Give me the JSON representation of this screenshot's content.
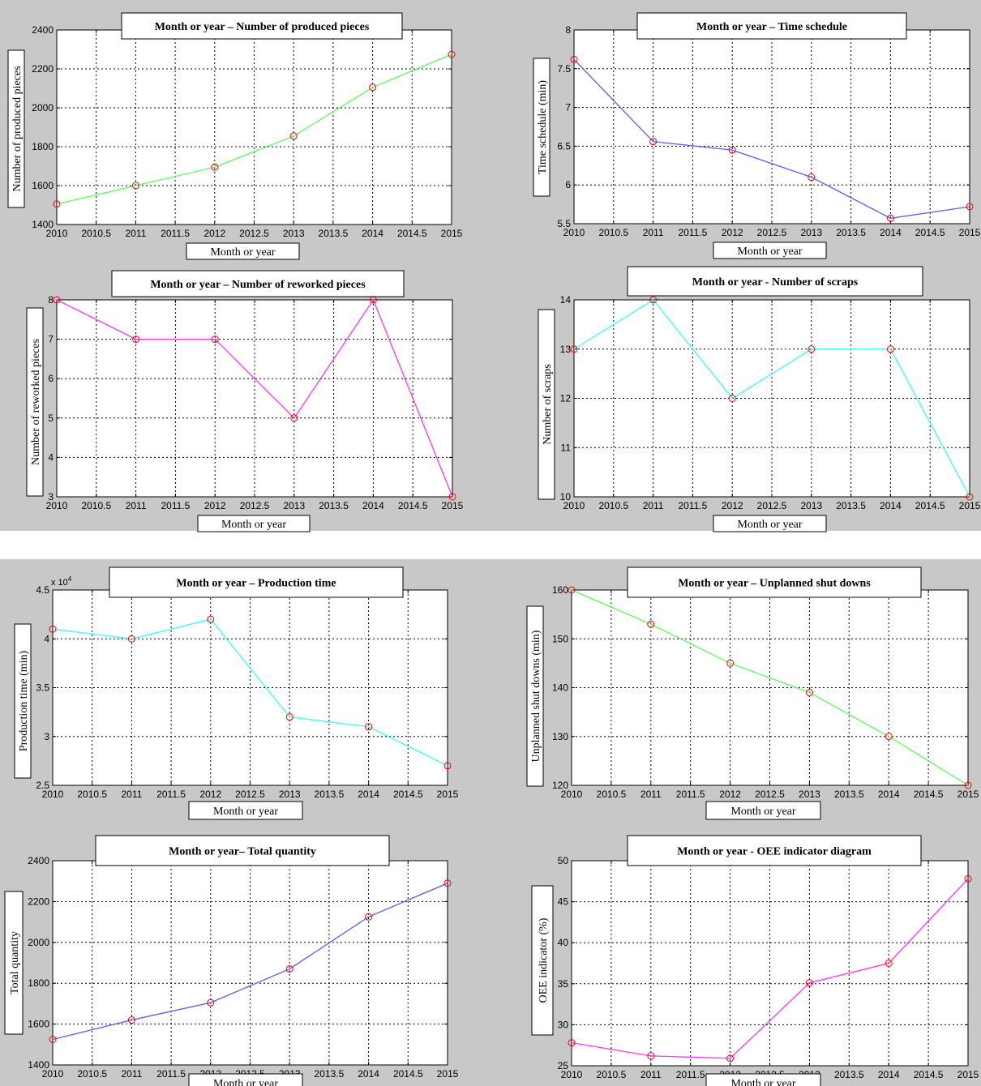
{
  "chart_data": [
    {
      "type": "line",
      "title": "Month or year – Number of produced pieces",
      "xlabel": "Month or year",
      "ylabel": "Number of produced pieces",
      "x": [
        2010,
        2011,
        2012,
        2013,
        2014,
        2015
      ],
      "series": [
        {
          "values": [
            1505,
            1600,
            1695,
            1855,
            2105,
            2275
          ]
        }
      ],
      "xlim": [
        2010,
        2015
      ],
      "ylim": [
        1400,
        2400
      ],
      "xticks": [
        "2010",
        "2010.5",
        "2011",
        "2011.5",
        "2012",
        "2012.5",
        "2013",
        "2013.5",
        "2014",
        "2014.5",
        "2015"
      ],
      "yticks": [
        "1400",
        "1600",
        "1800",
        "2000",
        "2200",
        "2400"
      ],
      "line_color": "#5aff5a",
      "marker_color": "#ff0000",
      "grid": true
    },
    {
      "type": "line",
      "title": "Month or year – Time schedule",
      "xlabel": "Month or year",
      "ylabel": "Time schedule (min)",
      "x": [
        2010,
        2011,
        2012,
        2013,
        2014,
        2015
      ],
      "series": [
        {
          "values": [
            7.62,
            6.56,
            6.45,
            6.1,
            5.57,
            5.72
          ]
        }
      ],
      "xlim": [
        2010,
        2015
      ],
      "ylim": [
        5.5,
        8
      ],
      "xticks": [
        "2010",
        "2010.5",
        "2011",
        "2011.5",
        "2012",
        "2012.5",
        "2013",
        "2013.5",
        "2014",
        "2014.5",
        "2015"
      ],
      "yticks": [
        "5.5",
        "6",
        "6.5",
        "7",
        "7.5",
        "8"
      ],
      "line_color": "#5a5aff",
      "marker_color": "#ff0000",
      "grid": true
    },
    {
      "type": "line",
      "title": "Month or year – Number of reworked pieces",
      "xlabel": "Month or year",
      "ylabel": "Number of reworked pieces",
      "x": [
        2010,
        2011,
        2012,
        2013,
        2014,
        2015
      ],
      "series": [
        {
          "values": [
            8,
            7,
            7,
            5,
            8,
            3
          ]
        }
      ],
      "xlim": [
        2010,
        2015
      ],
      "ylim": [
        3,
        8
      ],
      "xticks": [
        "2010",
        "2010.5",
        "2011",
        "2011.5",
        "2012",
        "2012.5",
        "2013",
        "2013.5",
        "2014",
        "2014.5",
        "2015"
      ],
      "yticks": [
        "3",
        "4",
        "5",
        "6",
        "7",
        "8"
      ],
      "line_color": "#ff33ff",
      "marker_color": "#ff0000",
      "grid": true
    },
    {
      "type": "line",
      "title": "Month or year - Number of scraps",
      "xlabel": "Month or year",
      "ylabel": "Number of scraps",
      "x": [
        2010,
        2011,
        2012,
        2013,
        2014,
        2015
      ],
      "series": [
        {
          "values": [
            13,
            14,
            12,
            13,
            13,
            10
          ]
        }
      ],
      "xlim": [
        2010,
        2015
      ],
      "ylim": [
        10,
        14
      ],
      "xticks": [
        "2010",
        "2010.5",
        "2011",
        "2011.5",
        "2012",
        "2012.5",
        "2013",
        "2013.5",
        "2014",
        "2014.5",
        "2015"
      ],
      "yticks": [
        "10",
        "11",
        "12",
        "13",
        "14"
      ],
      "line_color": "#33ffff",
      "marker_color": "#ff0000",
      "grid": true
    },
    {
      "type": "line",
      "title": "Month or year – Production time",
      "xlabel": "Month or year",
      "ylabel": "Production time (min)",
      "x": [
        2010,
        2011,
        2012,
        2013,
        2014,
        2015
      ],
      "series": [
        {
          "values": [
            41000,
            40000,
            42000,
            32000,
            31000,
            27000
          ]
        }
      ],
      "xlim": [
        2010,
        2015
      ],
      "ylim": [
        25000,
        45000
      ],
      "xticks": [
        "2010",
        "2010.5",
        "2011",
        "2011.5",
        "2012",
        "2012.5",
        "2013",
        "2013.5",
        "2014",
        "2014.5",
        "2015"
      ],
      "yticks": [
        "2.5",
        "3",
        "3.5",
        "4",
        "4.5"
      ],
      "exponent_base": "x 10",
      "exponent_power": "4",
      "line_color": "#33ffff",
      "marker_color": "#ff0000",
      "grid": true
    },
    {
      "type": "line",
      "title": "Month or year – Unplanned shut downs",
      "xlabel": "Month or year",
      "ylabel": "Unplanned shut downs (min)",
      "x": [
        2010,
        2011,
        2012,
        2013,
        2014,
        2015
      ],
      "series": [
        {
          "values": [
            160,
            153,
            145,
            139,
            130,
            120
          ]
        }
      ],
      "xlim": [
        2010,
        2015
      ],
      "ylim": [
        120,
        160
      ],
      "xticks": [
        "2010",
        "2010.5",
        "2011",
        "2011.5",
        "2012",
        "2012.5",
        "2013",
        "2013.5",
        "2014",
        "2014.5",
        "2015"
      ],
      "yticks": [
        "120",
        "130",
        "140",
        "150",
        "160"
      ],
      "line_color": "#5aff5a",
      "marker_color": "#ff0000",
      "grid": true
    },
    {
      "type": "line",
      "title": "Month or year– Total quantity",
      "xlabel": "Month or year",
      "ylabel": "Total quantity",
      "x": [
        2010,
        2011,
        2012,
        2013,
        2014,
        2015
      ],
      "series": [
        {
          "values": [
            1525,
            1620,
            1705,
            1870,
            2125,
            2290
          ]
        }
      ],
      "xlim": [
        2010,
        2015
      ],
      "ylim": [
        1400,
        2400
      ],
      "xticks": [
        "2010",
        "2010.5",
        "2011",
        "2011.5",
        "2012",
        "2012.5",
        "2013",
        "2013.5",
        "2014",
        "2014.5",
        "2015"
      ],
      "yticks": [
        "1400",
        "1600",
        "1800",
        "2000",
        "2200",
        "2400"
      ],
      "line_color": "#5a5aff",
      "marker_color": "#ff0000",
      "grid": true
    },
    {
      "type": "line",
      "title": "Month or year - OEE indicator diagram",
      "xlabel": "Month or year",
      "ylabel": "OEE indicator (%)",
      "x": [
        2010,
        2011,
        2012,
        2013,
        2014,
        2015
      ],
      "series": [
        {
          "values": [
            27.8,
            26.2,
            25.9,
            35.1,
            37.5,
            47.8
          ]
        }
      ],
      "xlim": [
        2010,
        2015
      ],
      "ylim": [
        25,
        50
      ],
      "xticks": [
        "2010",
        "2010.5",
        "2011",
        "2011.5",
        "2012",
        "2012.5",
        "2013",
        "2013.5",
        "2014",
        "2014.5",
        "2015"
      ],
      "yticks": [
        "25",
        "30",
        "35",
        "40",
        "45",
        "50"
      ],
      "line_color": "#ff33ff",
      "marker_color": "#ff0000",
      "grid": true
    }
  ]
}
